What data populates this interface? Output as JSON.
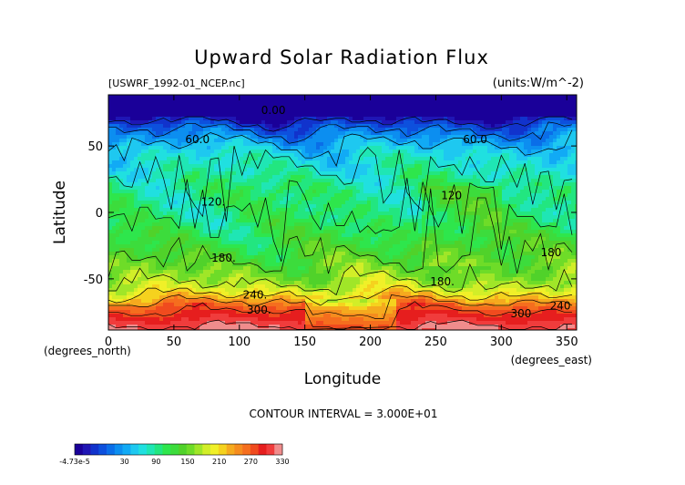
{
  "chart_data": {
    "type": "heatmap",
    "title": "Upward Solar Radiation Flux",
    "file_label": "[USWRF_1992-01_NCEP.nc]",
    "units_label": "(units:W/m^-2)",
    "xlabel": "Longitude",
    "ylabel": "Latitude",
    "x_unit_label": "(degrees_east)",
    "y_unit_label": "(degrees_north)",
    "xlim": [
      0,
      357.5
    ],
    "ylim": [
      -88.5,
      88.5
    ],
    "x_ticks": [
      0,
      50,
      100,
      150,
      200,
      250,
      300,
      350
    ],
    "y_ticks": [
      50,
      0,
      -50
    ],
    "contour_interval_text": "CONTOUR INTERVAL = 3.000E+01",
    "contour_labels": [
      {
        "text": "0.00",
        "lon": 126,
        "lat": 74
      },
      {
        "text": "60.0",
        "lon": 68,
        "lat": 52
      },
      {
        "text": "60.0",
        "lon": 280,
        "lat": 52
      },
      {
        "text": "120.",
        "lon": 80,
        "lat": 5
      },
      {
        "text": "120",
        "lon": 262,
        "lat": 10
      },
      {
        "text": "180.",
        "lon": 88,
        "lat": -37
      },
      {
        "text": "180",
        "lon": 338,
        "lat": -33
      },
      {
        "text": "180.",
        "lon": 255,
        "lat": -55
      },
      {
        "text": "240.",
        "lon": 112,
        "lat": -65
      },
      {
        "text": "300.",
        "lon": 115,
        "lat": -76
      },
      {
        "text": "300",
        "lon": 315,
        "lat": -79
      },
      {
        "text": "240",
        "lon": 345,
        "lat": -73
      }
    ],
    "zonal_profile": {
      "lat": [
        88,
        80,
        74,
        70,
        64,
        58,
        52,
        46,
        40,
        34,
        28,
        22,
        16,
        10,
        4,
        -2,
        -8,
        -14,
        -20,
        -26,
        -32,
        -38,
        -44,
        -50,
        -56,
        -62,
        -66,
        -70,
        -74,
        -78,
        -82,
        -86
      ],
      "value": [
        0,
        0,
        0,
        20,
        50,
        70,
        90,
        105,
        115,
        120,
        128,
        136,
        140,
        140,
        140,
        142,
        146,
        152,
        158,
        165,
        172,
        180,
        190,
        200,
        215,
        240,
        262,
        285,
        300,
        310,
        320,
        330
      ]
    },
    "colorbar": {
      "labels": [
        "-4.73e-5",
        "30",
        "90",
        "150",
        "210",
        "270",
        "330"
      ],
      "colors": [
        "#1a0099",
        "#1f16b4",
        "#1133cc",
        "#0d50dd",
        "#0a6ee8",
        "#0c8ef0",
        "#11aaf5",
        "#1ec8f0",
        "#20e0e0",
        "#1fe6b4",
        "#22e680",
        "#2ee64c",
        "#3cdc3c",
        "#50d22a",
        "#6edc28",
        "#a0e628",
        "#d2ee28",
        "#f0f028",
        "#f5d21e",
        "#f5aa1e",
        "#f58c1e",
        "#f56e1e",
        "#f04b1e",
        "#e61e1e",
        "#f03c3c",
        "#f08c8c"
      ]
    }
  }
}
